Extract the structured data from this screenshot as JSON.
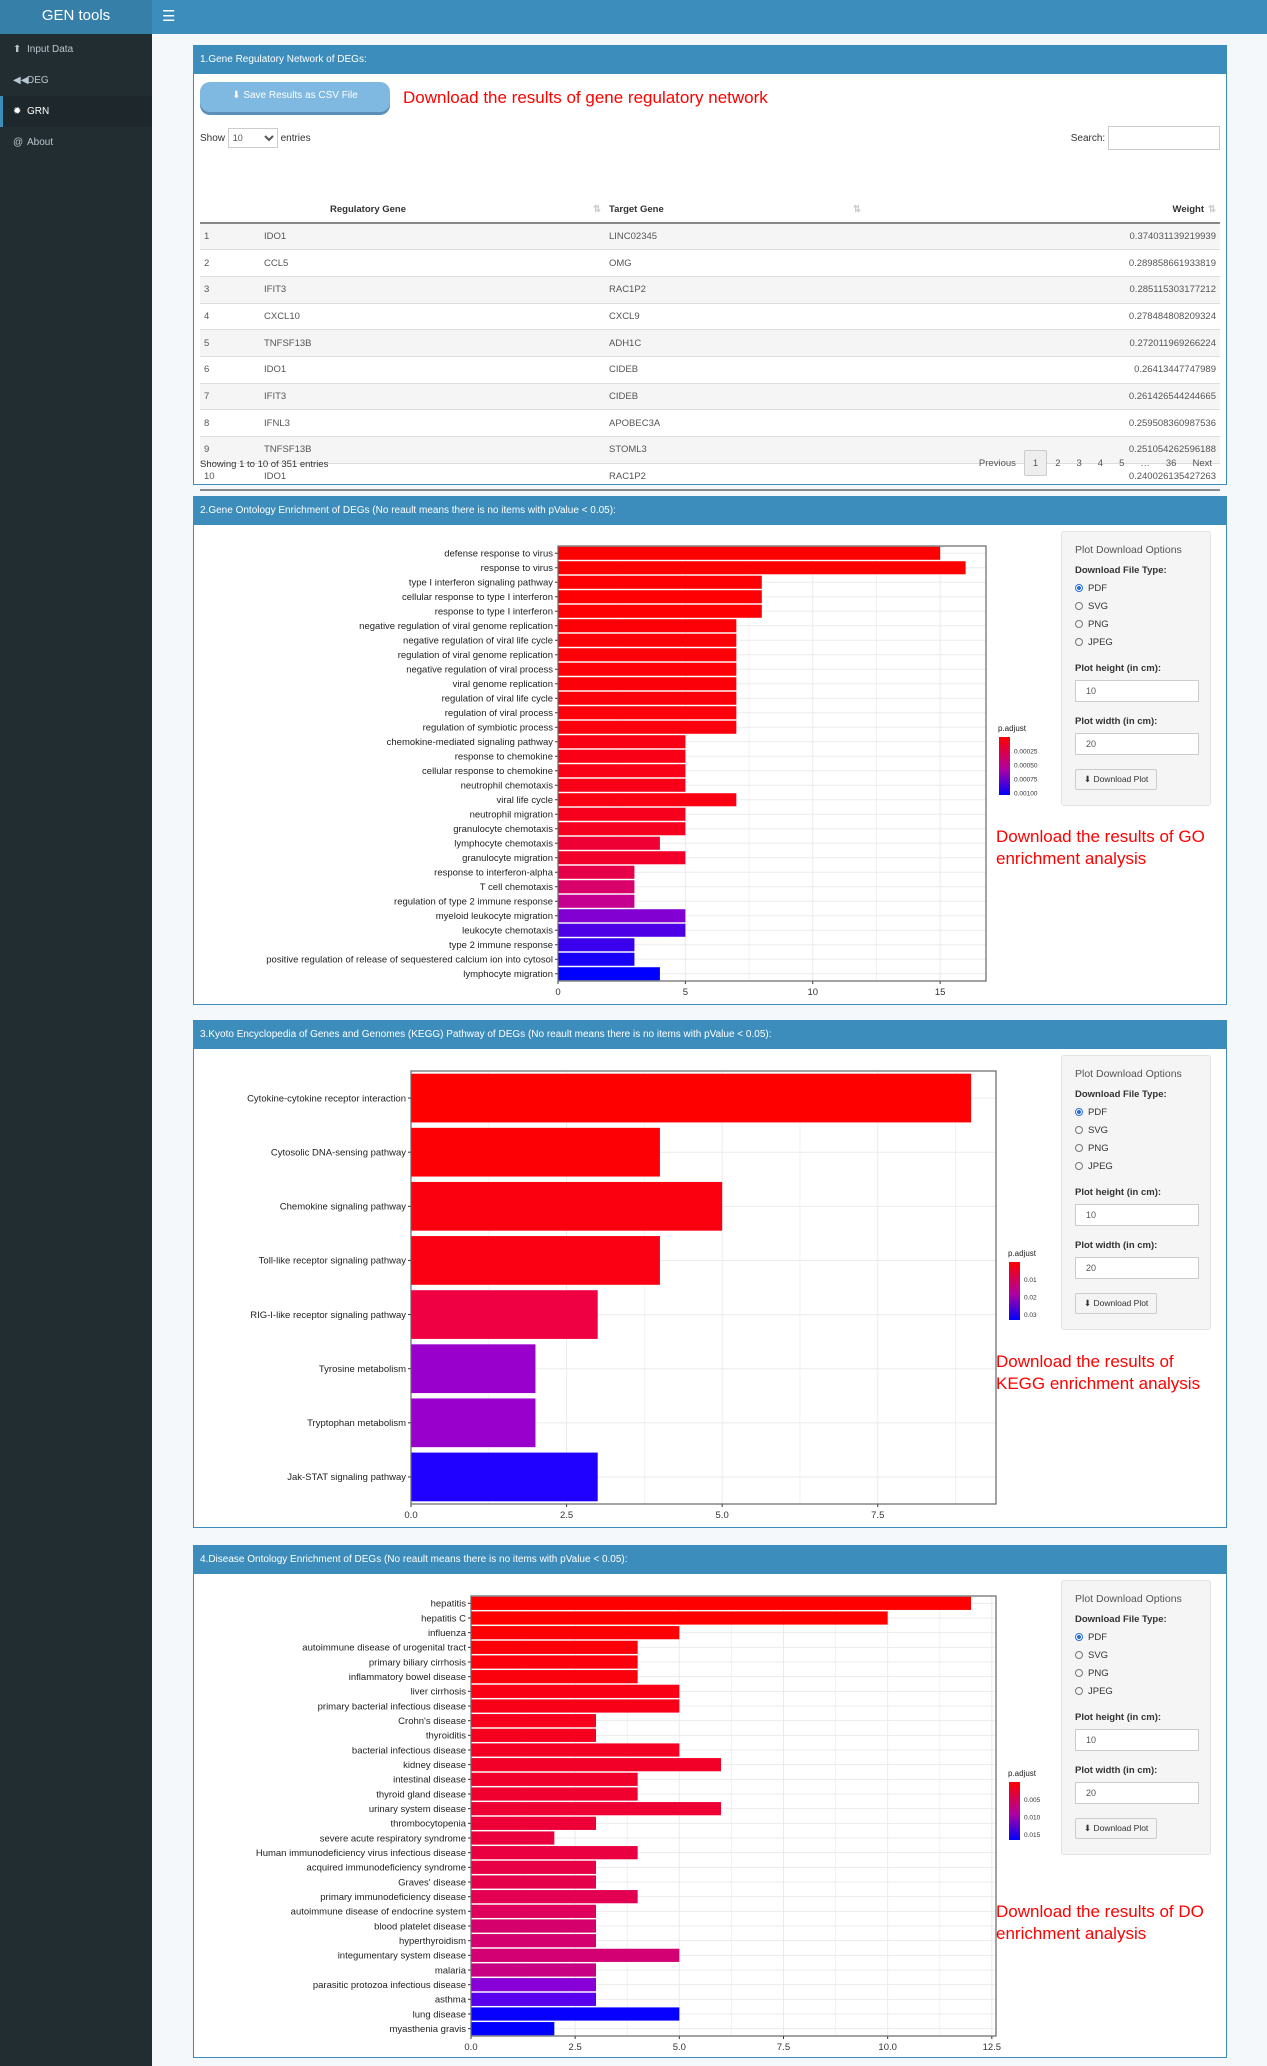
{
  "app": {
    "title": "GEN tools",
    "menu_icon": "hamburger-icon"
  },
  "sidebar": {
    "items": [
      {
        "label": "Input Data",
        "icon": "upload-icon",
        "glyph": "⬆"
      },
      {
        "label": "DEG",
        "icon": "backward-icon",
        "glyph": "◀◀"
      },
      {
        "label": "GRN",
        "icon": "gear-icon",
        "glyph": "✹",
        "active": true
      },
      {
        "label": "About",
        "icon": "at-icon",
        "glyph": "@"
      }
    ]
  },
  "grn": {
    "title": "1.Gene Regulatory Network of DEGs:",
    "save_button": "Save Results as CSV File",
    "note": "Download the results of gene regulatory network",
    "show_label": "Show",
    "entries_label": "entries",
    "page_size": "10",
    "search_label": "Search:",
    "search_value": "",
    "columns": [
      "",
      "Regulatory Gene",
      "Target Gene",
      "Weight"
    ],
    "rows": [
      [
        "1",
        "IDO1",
        "LINC02345",
        "0.374031139219939"
      ],
      [
        "2",
        "CCL5",
        "OMG",
        "0.289858661933819"
      ],
      [
        "3",
        "IFIT3",
        "RAC1P2",
        "0.285115303177212"
      ],
      [
        "4",
        "CXCL10",
        "CXCL9",
        "0.278484808209324"
      ],
      [
        "5",
        "TNFSF13B",
        "ADH1C",
        "0.272011969266224"
      ],
      [
        "6",
        "IDO1",
        "CIDEB",
        "0.26413447747989"
      ],
      [
        "7",
        "IFIT3",
        "CIDEB",
        "0.261426544244665"
      ],
      [
        "8",
        "IFNL3",
        "APOBEC3A",
        "0.259508360987536"
      ],
      [
        "9",
        "TNFSF13B",
        "STOML3",
        "0.251054262596188"
      ],
      [
        "10",
        "IDO1",
        "RAC1P2",
        "0.240026135427263"
      ]
    ],
    "info": "Showing 1 to 10 of 351 entries",
    "pager": {
      "previous": "Previous",
      "pages": [
        "1",
        "2",
        "3",
        "4",
        "5",
        "…",
        "36"
      ],
      "current": "1",
      "next": "Next"
    }
  },
  "options": {
    "title": "Plot Download Options",
    "file_type_label": "Download File Type:",
    "file_types": [
      "PDF",
      "SVG",
      "PNG",
      "JPEG"
    ],
    "selected": "PDF",
    "height_label": "Plot height (in cm):",
    "height_value": "10",
    "width_label": "Plot width (in cm):",
    "width_value": "20",
    "download_button": "Download Plot"
  },
  "go": {
    "title": "2.Gene Ontology Enrichment of DEGs (No reault means there is no items with pValue < 0.05):",
    "note": "Download the results of GO enrichment analysis"
  },
  "kegg": {
    "title": "3.Kyoto Encyclopedia of Genes and Genomes (KEGG) Pathway of DEGs (No reault means there is no items with pValue < 0.05):",
    "note": "Download the results of KEGG enrichment analysis"
  },
  "do": {
    "title": "4.Disease Ontology Enrichment of DEGs (No reault means there is no items with pValue < 0.05):",
    "note": "Download the results of DO enrichment analysis"
  },
  "chart_data": [
    {
      "id": "go",
      "type": "bar",
      "orientation": "horizontal",
      "xlim": [
        0,
        16.8
      ],
      "xticks": [
        0,
        5,
        10,
        15
      ],
      "xtick_labels": [
        "0",
        "5",
        "10",
        "15"
      ],
      "grid": true,
      "legend": {
        "title": "p.adjust",
        "labels": [
          "0.00025",
          "0.00050",
          "0.00075",
          "0.00100"
        ],
        "placement": "right"
      },
      "categories": [
        "defense response to virus",
        "response to virus",
        "type I interferon signaling pathway",
        "cellular response to type I interferon",
        "response to type I interferon",
        "negative regulation of viral genome replication",
        "negative regulation of viral life cycle",
        "regulation of viral genome replication",
        "negative regulation of viral process",
        "viral genome replication",
        "regulation of viral life cycle",
        "regulation of viral process",
        "regulation of symbiotic process",
        "chemokine-mediated signaling pathway",
        "response to chemokine",
        "cellular response to chemokine",
        "neutrophil chemotaxis",
        "viral life cycle",
        "neutrophil migration",
        "granulocyte chemotaxis",
        "lymphocyte chemotaxis",
        "granulocyte migration",
        "response to interferon-alpha",
        "T cell chemotaxis",
        "regulation of type 2 immune response",
        "myeloid leukocyte migration",
        "leukocyte chemotaxis",
        "type 2 immune response",
        "positive regulation of release of sequestered calcium ion into cytosol",
        "lymphocyte migration"
      ],
      "values": [
        15,
        16,
        8,
        8,
        8,
        7,
        7,
        7,
        7,
        7,
        7,
        7,
        7,
        5,
        5,
        5,
        5,
        7,
        5,
        5,
        4,
        5,
        3,
        3,
        3,
        5,
        5,
        3,
        3,
        4
      ],
      "colors": [
        "#ff0000",
        "#ff0000",
        "#fe0003",
        "#fe0003",
        "#fe0003",
        "#fd0007",
        "#fd0007",
        "#fd0008",
        "#fd0008",
        "#fc000a",
        "#fc000a",
        "#fc000b",
        "#fb000d",
        "#f90015",
        "#f90016",
        "#f90016",
        "#f80018",
        "#fa0012",
        "#f6001e",
        "#f5001f",
        "#ee0035",
        "#f2002a",
        "#e6004a",
        "#d9006a",
        "#c50090",
        "#8300d2",
        "#4c00e6",
        "#3a00ee",
        "#1800f8",
        "#0000ff"
      ]
    },
    {
      "id": "kegg",
      "type": "bar",
      "orientation": "horizontal",
      "xlim": [
        0,
        9.4
      ],
      "xticks": [
        0,
        2.5,
        5,
        7.5
      ],
      "xtick_labels": [
        "0.0",
        "2.5",
        "5.0",
        "7.5"
      ],
      "grid": true,
      "legend": {
        "title": "p.adjust",
        "labels": [
          "0.01",
          "0.02",
          "0.03"
        ],
        "placement": "right"
      },
      "categories": [
        "Cytokine-cytokine receptor interaction",
        "Cytosolic DNA-sensing pathway",
        "Chemokine signaling pathway",
        "Toll-like receptor signaling pathway",
        "RIG-I-like receptor signaling pathway",
        "Tyrosine metabolism",
        "Tryptophan metabolism",
        "Jak-STAT signaling pathway"
      ],
      "values": [
        9,
        4,
        5,
        4,
        3,
        2,
        2,
        3
      ],
      "colors": [
        "#ff0000",
        "#fd0006",
        "#fb000e",
        "#fa0012",
        "#ee0042",
        "#9a00cc",
        "#9a00cc",
        "#2000ff"
      ]
    },
    {
      "id": "do",
      "type": "bar",
      "orientation": "horizontal",
      "xlim": [
        0,
        12.6
      ],
      "xticks": [
        0,
        2.5,
        5,
        7.5,
        10,
        12.5
      ],
      "xtick_labels": [
        "0.0",
        "2.5",
        "5.0",
        "7.5",
        "10.0",
        "12.5"
      ],
      "grid": true,
      "legend": {
        "title": "p.adjust",
        "labels": [
          "0.005",
          "0.010",
          "0.015"
        ],
        "placement": "right"
      },
      "categories": [
        "hepatitis",
        "hepatitis C",
        "influenza",
        "autoimmune disease of urogenital tract",
        "primary biliary cirrhosis",
        "inflammatory bowel disease",
        "liver cirrhosis",
        "primary bacterial infectious disease",
        "Crohn's disease",
        "thyroiditis",
        "bacterial infectious disease",
        "kidney disease",
        "intestinal disease",
        "thyroid gland disease",
        "urinary system disease",
        "thrombocytopenia",
        "severe acute respiratory syndrome",
        "Human immunodeficiency virus infectious disease",
        "acquired immunodeficiency syndrome",
        "Graves' disease",
        "primary immunodeficiency disease",
        "autoimmune disease of endocrine system",
        "blood platelet disease",
        "hyperthyroidism",
        "integumentary system disease",
        "malaria",
        "parasitic protozoa infectious disease",
        "asthma",
        "lung disease",
        "myasthenia gravis"
      ],
      "values": [
        12,
        10,
        5,
        4,
        4,
        4,
        5,
        5,
        3,
        3,
        5,
        6,
        4,
        4,
        6,
        3,
        2,
        4,
        3,
        3,
        4,
        3,
        3,
        3,
        5,
        3,
        3,
        3,
        5,
        2
      ],
      "colors": [
        "#ff0000",
        "#ff0000",
        "#fe0004",
        "#fc000a",
        "#fc000b",
        "#fb000d",
        "#f90015",
        "#f80018",
        "#f6001e",
        "#f5001f",
        "#f40024",
        "#f20028",
        "#f1002c",
        "#f0002e",
        "#ee0034",
        "#ed0038",
        "#eb003d",
        "#ea0040",
        "#e80046",
        "#e5004c",
        "#e30052",
        "#de005c",
        "#d6006c",
        "#d4006f",
        "#d20072",
        "#c80082",
        "#8800d8",
        "#5800ee",
        "#0800ff",
        "#0000ff"
      ]
    }
  ]
}
